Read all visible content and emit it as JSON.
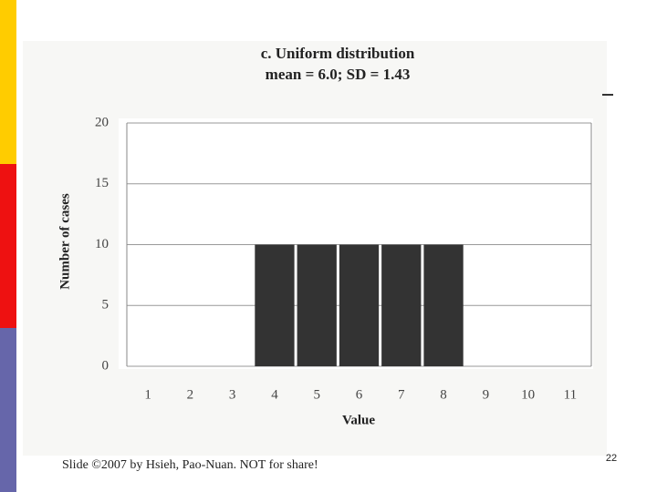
{
  "chart_data": {
    "type": "bar",
    "title": "c. Uniform distribution",
    "subtitle": "mean = 6.0; SD = 1.43",
    "x_label": "Value",
    "y_label": "Number of cases",
    "categories": [
      "1",
      "2",
      "3",
      "4",
      "5",
      "6",
      "7",
      "8",
      "9",
      "10",
      "11"
    ],
    "values": [
      0,
      0,
      0,
      10,
      10,
      10,
      10,
      10,
      0,
      0,
      0
    ],
    "color": "#333333",
    "ylim": [
      0,
      20
    ],
    "yticks": [
      0,
      5,
      10,
      15,
      20
    ],
    "grid": true
  },
  "footer": "Slide ©2007 by Hsieh, Pao-Nuan. NOT for share!",
  "page_number": "22"
}
